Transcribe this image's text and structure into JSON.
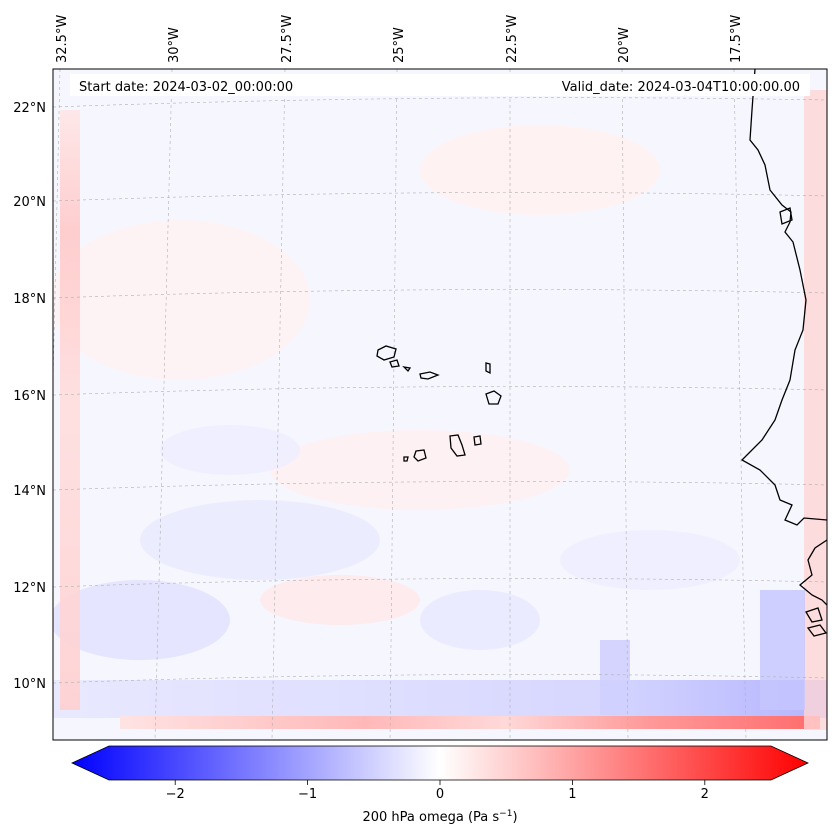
{
  "header": {
    "start_date": "Start date: 2024-03-02_00:00:00",
    "valid_date": "Valid_date: 2024-03-04T10:00:00.00"
  },
  "map": {
    "projection": "lambert-conformal",
    "lon_range": [
      -33.5,
      -15.5
    ],
    "lat_range": [
      8.8,
      22.8
    ],
    "lon_ticks": [
      {
        "value": -32.5,
        "label": "32.5°W"
      },
      {
        "value": -30.0,
        "label": "30°W"
      },
      {
        "value": -27.5,
        "label": "27.5°W"
      },
      {
        "value": -25.0,
        "label": "25°W"
      },
      {
        "value": -22.5,
        "label": "22.5°W"
      },
      {
        "value": -20.0,
        "label": "20°W"
      },
      {
        "value": -17.5,
        "label": "17.5°W"
      }
    ],
    "lat_ticks": [
      {
        "value": 22,
        "label": "22°N"
      },
      {
        "value": 20,
        "label": "20°N"
      },
      {
        "value": 18,
        "label": "18°N"
      },
      {
        "value": 16,
        "label": "16°N"
      },
      {
        "value": 14,
        "label": "14°N"
      },
      {
        "value": 12,
        "label": "12°N"
      },
      {
        "value": 10,
        "label": "10°N"
      }
    ],
    "gridlines": true,
    "coastline_color": "#000000",
    "features": [
      "cape-verde-islands",
      "west-africa-coastline"
    ]
  },
  "field": {
    "variable": "200 hPa omega",
    "units": "Pa s⁻¹",
    "colormap": "bwr",
    "min": -2.5,
    "max": 2.5,
    "description_visible": "mostly near-zero, weak positive band along south and west edges"
  },
  "colorbar": {
    "label_main": "200 hPa omega (Pa s",
    "label_sup": "−1",
    "label_end": ")",
    "ticks": [
      {
        "value": -2,
        "label": "−2"
      },
      {
        "value": -1,
        "label": "−1"
      },
      {
        "value": 0,
        "label": "0"
      },
      {
        "value": 1,
        "label": "1"
      },
      {
        "value": 2,
        "label": "2"
      }
    ],
    "extend": "both",
    "color_min": "#0000ff",
    "color_mid": "#ffffff",
    "color_max": "#ff0000"
  }
}
